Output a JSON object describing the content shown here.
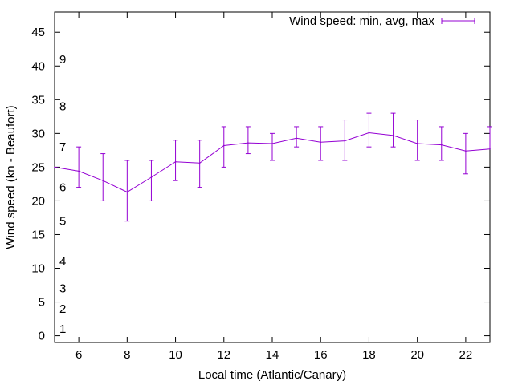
{
  "chart_data": {
    "type": "line",
    "xlabel": "Local time (Atlantic/Canary)",
    "ylabel": "Wind speed (kn - Beaufort)",
    "xlim": [
      5,
      23
    ],
    "ylim": [
      -1,
      48
    ],
    "x_ticks": [
      6,
      8,
      10,
      12,
      14,
      16,
      18,
      20,
      22
    ],
    "y_ticks": [
      0,
      5,
      10,
      15,
      20,
      25,
      30,
      35,
      40,
      45
    ],
    "grid": false,
    "legend_position": "top-right",
    "series": [
      {
        "name": "Wind speed: min, avg, max",
        "color": "#9400d3",
        "x": [
          5,
          6,
          7,
          8,
          9,
          10,
          11,
          12,
          13,
          14,
          15,
          16,
          17,
          18,
          19,
          20,
          21,
          22,
          23
        ],
        "avg": [
          25.0,
          24.4,
          23.0,
          21.3,
          23.5,
          25.8,
          25.6,
          28.2,
          28.6,
          28.5,
          29.3,
          28.7,
          28.9,
          30.1,
          29.7,
          28.5,
          28.3,
          27.4,
          27.7
        ],
        "min": [
          null,
          22,
          20,
          17,
          20,
          23,
          22,
          25,
          27,
          26,
          28,
          26,
          26,
          28,
          28,
          26,
          26,
          24,
          null
        ],
        "max": [
          null,
          28,
          27,
          26,
          26,
          29,
          29,
          31,
          31,
          30,
          31,
          31,
          32,
          33,
          33,
          32,
          31,
          30,
          31
        ]
      }
    ],
    "beaufort_scale": [
      {
        "label": "1",
        "speed": 1
      },
      {
        "label": "2",
        "speed": 4
      },
      {
        "label": "3",
        "speed": 7
      },
      {
        "label": "4",
        "speed": 11
      },
      {
        "label": "5",
        "speed": 17
      },
      {
        "label": "6",
        "speed": 22
      },
      {
        "label": "7",
        "speed": 28
      },
      {
        "label": "8",
        "speed": 34
      },
      {
        "label": "9",
        "speed": 41
      }
    ]
  }
}
